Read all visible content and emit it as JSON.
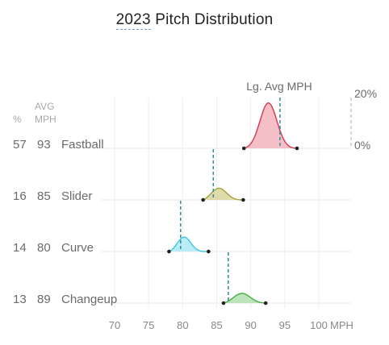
{
  "title_year": "2023",
  "title_rest": " Pitch Distribution",
  "headers": {
    "pct": "%",
    "avg_line1": "AVG",
    "avg_line2": "MPH"
  },
  "league_label": "Lg. Avg MPH",
  "density_scale": {
    "top_label": "20%",
    "bottom_label": "0%"
  },
  "x_axis": {
    "ticks": [
      70,
      75,
      80,
      85,
      90,
      95,
      100
    ],
    "unit": "MPH",
    "range": [
      67,
      102
    ]
  },
  "chart_data": {
    "type": "area",
    "title": "2023 Pitch Distribution",
    "xlabel": "MPH",
    "xlim": [
      67,
      102
    ],
    "density_max": "20%",
    "pitches": [
      {
        "name": "Fastball",
        "pct": 57,
        "avg_mph": 93,
        "lg_avg_mph": 94.3,
        "min": 89.0,
        "max": 96.8,
        "peak": 92.6,
        "spread": 1.25,
        "peak_density": 0.18,
        "color": "#d6374d",
        "fill": "#f4bcc4"
      },
      {
        "name": "Slider",
        "pct": 16,
        "avg_mph": 85,
        "lg_avg_mph": 84.5,
        "min": 83.0,
        "max": 88.9,
        "peak": 85.3,
        "spread": 1.15,
        "peak_density": 0.05,
        "color": "#a8a23a",
        "fill": "#ddd9a6"
      },
      {
        "name": "Curve",
        "pct": 14,
        "avg_mph": 80,
        "lg_avg_mph": 79.7,
        "min": 78.0,
        "max": 83.8,
        "peak": 80.2,
        "spread": 1.0,
        "peak_density": 0.06,
        "color": "#3fc6e2",
        "fill": "#b4ecf6"
      },
      {
        "name": "Changeup",
        "pct": 13,
        "avg_mph": 89,
        "lg_avg_mph": 86.7,
        "min": 86.0,
        "max": 92.2,
        "peak": 88.7,
        "spread": 1.25,
        "peak_density": 0.04,
        "color": "#43ad43",
        "fill": "#b9e2b6"
      }
    ]
  }
}
